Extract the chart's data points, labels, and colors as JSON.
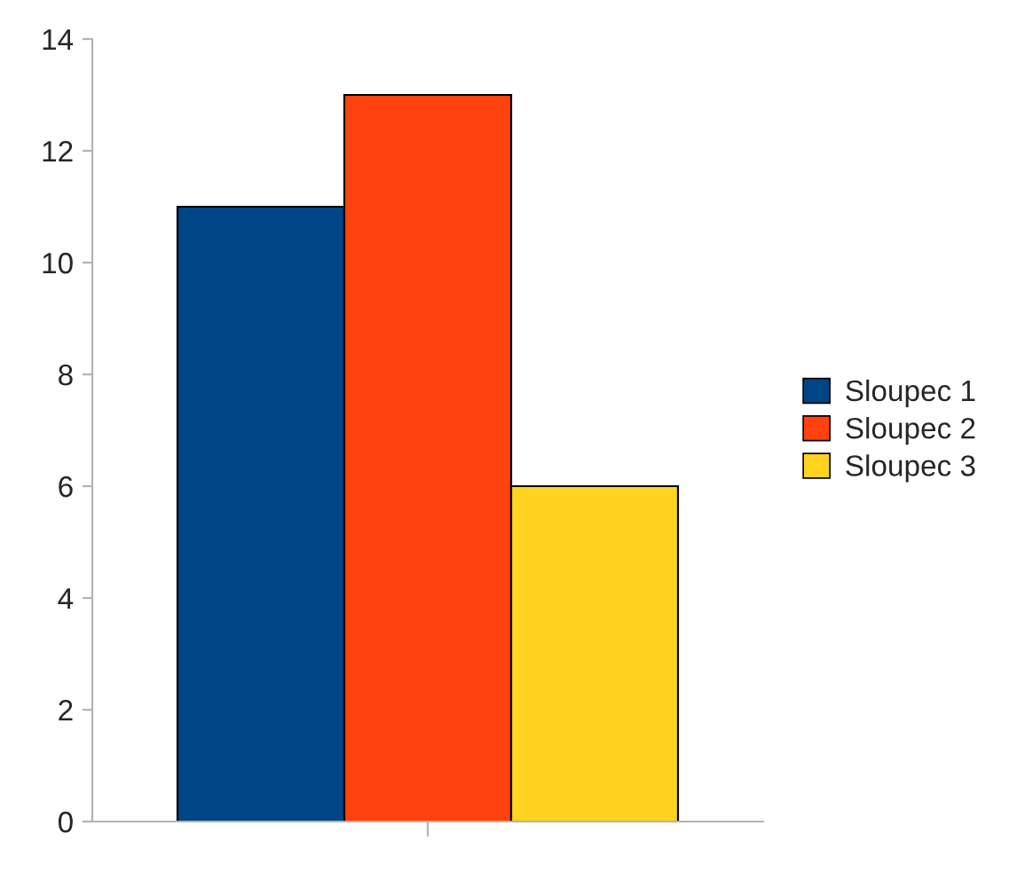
{
  "chart_data": {
    "type": "bar",
    "categories": [
      null
    ],
    "series": [
      {
        "name": "Sloupec 1",
        "color": "#004586",
        "values": [
          11
        ]
      },
      {
        "name": "Sloupec 2",
        "color": "#ff420e",
        "values": [
          13
        ]
      },
      {
        "name": "Sloupec 3",
        "color": "#ffd320",
        "values": [
          6
        ]
      }
    ],
    "ylim": [
      0,
      14
    ],
    "yticks": [
      0,
      2,
      4,
      6,
      8,
      10,
      12,
      14
    ],
    "grid": false,
    "legend": "right"
  }
}
